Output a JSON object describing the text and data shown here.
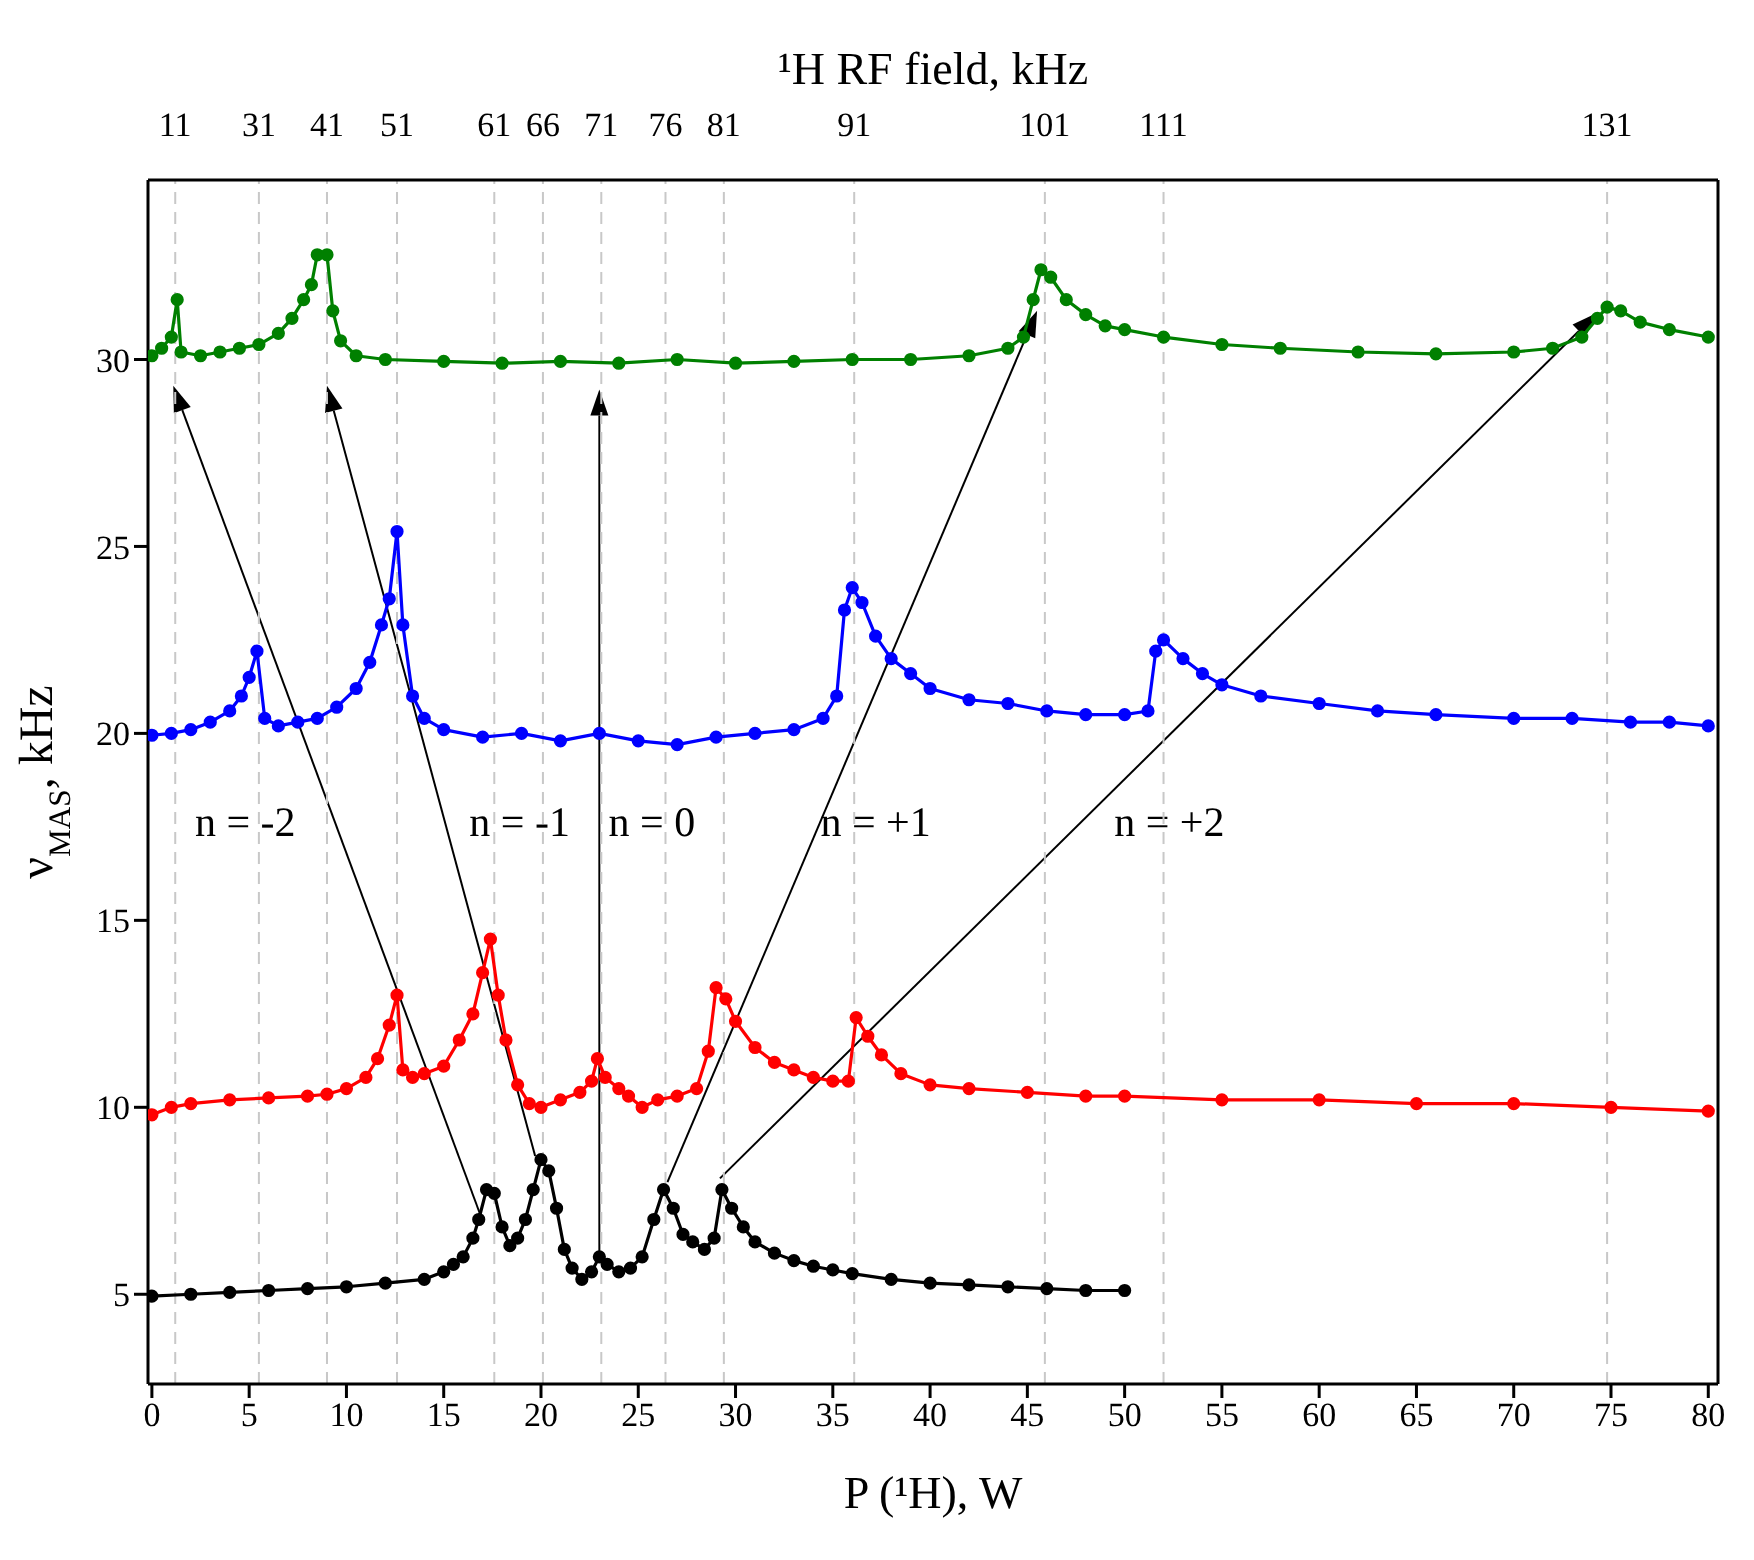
{
  "chart_data": {
    "type": "line",
    "xlabel": "P (¹H), W",
    "ylabel": "ν$_{MAS}$, kHz",
    "x2label": "¹H RF field, kHz",
    "xlim": [
      -0.2,
      80.5
    ],
    "xticks": [
      0,
      5,
      10,
      15,
      20,
      25,
      30,
      35,
      40,
      45,
      50,
      55,
      60,
      65,
      70,
      75,
      80
    ],
    "ylim": [
      2.6,
      34.8
    ],
    "yticks": [
      5,
      10,
      15,
      20,
      25,
      30
    ],
    "ref_lines": [
      {
        "axis": "x",
        "value": 1.2,
        "color": "#c8c8c8",
        "line_style": "dashed"
      },
      {
        "axis": "x",
        "value": 5.5,
        "color": "#c8c8c8",
        "line_style": "dashed"
      },
      {
        "axis": "x",
        "value": 9.0,
        "color": "#c8c8c8",
        "line_style": "dashed"
      },
      {
        "axis": "x",
        "value": 12.6,
        "color": "#c8c8c8",
        "line_style": "dashed"
      },
      {
        "axis": "x",
        "value": 17.6,
        "color": "#c8c8c8",
        "line_style": "dashed"
      },
      {
        "axis": "x",
        "value": 20.1,
        "color": "#c8c8c8",
        "line_style": "dashed"
      },
      {
        "axis": "x",
        "value": 23.1,
        "color": "#c8c8c8",
        "line_style": "dashed"
      },
      {
        "axis": "x",
        "value": 26.4,
        "color": "#c8c8c8",
        "line_style": "dashed"
      },
      {
        "axis": "x",
        "value": 29.4,
        "color": "#c8c8c8",
        "line_style": "dashed"
      },
      {
        "axis": "x",
        "value": 36.1,
        "color": "#c8c8c8",
        "line_style": "dashed"
      },
      {
        "axis": "x",
        "value": 45.9,
        "color": "#c8c8c8",
        "line_style": "dashed"
      },
      {
        "axis": "x",
        "value": 52.0,
        "color": "#c8c8c8",
        "line_style": "dashed"
      },
      {
        "axis": "x",
        "value": 74.8,
        "color": "#c8c8c8",
        "line_style": "dashed"
      }
    ],
    "marker": "circle",
    "line_style": "solid",
    "series": [
      {
        "color": "#000000",
        "x": [
          0,
          2,
          4,
          6,
          8,
          10,
          12,
          14,
          15,
          15.5,
          16,
          16.5,
          16.8,
          17.2,
          17.6,
          18,
          18.4,
          18.8,
          19.2,
          19.6,
          20.0,
          20.4,
          20.8,
          21.2,
          21.6,
          22.1,
          22.6,
          23.0,
          23.4,
          24.0,
          24.6,
          25.2,
          25.8,
          26.3,
          26.8,
          27.3,
          27.8,
          28.4,
          28.9,
          29.3,
          29.8,
          30.4,
          31,
          32,
          33,
          34,
          35,
          36,
          38,
          40,
          42,
          44,
          46,
          48,
          50
        ],
        "values": [
          4.95,
          5.0,
          5.05,
          5.1,
          5.15,
          5.2,
          5.3,
          5.4,
          5.6,
          5.8,
          6.0,
          6.5,
          7.0,
          7.8,
          7.7,
          6.8,
          6.3,
          6.5,
          7.0,
          7.8,
          8.6,
          8.3,
          7.3,
          6.2,
          5.7,
          5.4,
          5.6,
          6.0,
          5.8,
          5.6,
          5.7,
          6.0,
          7.0,
          7.8,
          7.3,
          6.6,
          6.4,
          6.2,
          6.5,
          7.8,
          7.3,
          6.8,
          6.4,
          6.1,
          5.9,
          5.75,
          5.65,
          5.55,
          5.4,
          5.3,
          5.25,
          5.2,
          5.15,
          5.1,
          5.1
        ]
      },
      {
        "color": "#ff0000",
        "x": [
          0,
          1,
          2,
          4,
          6,
          8,
          9,
          10,
          11,
          11.6,
          12.2,
          12.6,
          12.9,
          13.4,
          14,
          15,
          15.8,
          16.5,
          17,
          17.4,
          17.8,
          18.2,
          18.8,
          19.4,
          20,
          21,
          22,
          22.6,
          22.9,
          23.3,
          24,
          24.5,
          25.2,
          26,
          27,
          28,
          28.6,
          29.0,
          29.5,
          30,
          31,
          32,
          33,
          34,
          35,
          35.8,
          36.2,
          36.8,
          37.5,
          38.5,
          40,
          42,
          45,
          48,
          50,
          55,
          60,
          65,
          70,
          75,
          80
        ],
        "values": [
          9.8,
          10.0,
          10.1,
          10.2,
          10.25,
          10.3,
          10.35,
          10.5,
          10.8,
          11.3,
          12.2,
          13.0,
          11.0,
          10.8,
          10.9,
          11.1,
          11.8,
          12.5,
          13.6,
          14.5,
          13.0,
          11.8,
          10.6,
          10.1,
          10.0,
          10.2,
          10.4,
          10.7,
          11.3,
          10.8,
          10.5,
          10.3,
          10.0,
          10.2,
          10.3,
          10.5,
          11.5,
          13.2,
          12.9,
          12.3,
          11.6,
          11.2,
          11.0,
          10.8,
          10.7,
          10.7,
          12.4,
          11.9,
          11.4,
          10.9,
          10.6,
          10.5,
          10.4,
          10.3,
          10.3,
          10.2,
          10.2,
          10.1,
          10.1,
          10.0,
          9.9
        ]
      },
      {
        "color": "#0000ff",
        "x": [
          0,
          1,
          2,
          3,
          4,
          4.6,
          5.0,
          5.4,
          5.8,
          6.5,
          7.5,
          8.5,
          9.5,
          10.5,
          11.2,
          11.8,
          12.2,
          12.6,
          12.9,
          13.4,
          14,
          15,
          17,
          19,
          21,
          23,
          25,
          27,
          29,
          31,
          33,
          34.5,
          35.2,
          35.6,
          36,
          36.5,
          37.2,
          38,
          39,
          40,
          42,
          44,
          46,
          48,
          50,
          51.2,
          51.6,
          52,
          53,
          54,
          55,
          57,
          60,
          63,
          66,
          70,
          73,
          76,
          78,
          80
        ],
        "values": [
          19.95,
          20.0,
          20.1,
          20.3,
          20.6,
          21.0,
          21.5,
          22.2,
          20.4,
          20.2,
          20.3,
          20.4,
          20.7,
          21.2,
          21.9,
          22.9,
          23.6,
          25.4,
          22.9,
          21.0,
          20.4,
          20.1,
          19.9,
          20.0,
          19.8,
          20.0,
          19.8,
          19.7,
          19.9,
          20.0,
          20.1,
          20.4,
          21.0,
          23.3,
          23.9,
          23.5,
          22.6,
          22.0,
          21.6,
          21.2,
          20.9,
          20.8,
          20.6,
          20.5,
          20.5,
          20.6,
          22.2,
          22.5,
          22.0,
          21.6,
          21.3,
          21.0,
          20.8,
          20.6,
          20.5,
          20.4,
          20.4,
          20.3,
          20.3,
          20.2
        ]
      },
      {
        "color": "#008000",
        "x": [
          0,
          0.5,
          1.0,
          1.3,
          1.5,
          2.5,
          3.5,
          4.5,
          5.5,
          6.5,
          7.2,
          7.8,
          8.2,
          8.5,
          9.0,
          9.3,
          9.7,
          10.5,
          12,
          15,
          18,
          21,
          24,
          27,
          30,
          33,
          36,
          39,
          42,
          44,
          44.8,
          45.3,
          45.7,
          46.2,
          47,
          48,
          49,
          50,
          52,
          55,
          58,
          62,
          66,
          70,
          72,
          73.5,
          74.3,
          74.8,
          75.5,
          76.5,
          78,
          80
        ],
        "values": [
          30.1,
          30.3,
          30.6,
          31.6,
          30.2,
          30.1,
          30.2,
          30.3,
          30.4,
          30.7,
          31.1,
          31.6,
          32.0,
          32.8,
          32.8,
          31.3,
          30.5,
          30.1,
          30.0,
          29.95,
          29.9,
          29.95,
          29.9,
          30.0,
          29.9,
          29.95,
          30.0,
          30.0,
          30.1,
          30.3,
          30.6,
          31.6,
          32.4,
          32.2,
          31.6,
          31.2,
          30.9,
          30.8,
          30.6,
          30.4,
          30.3,
          30.2,
          30.15,
          30.2,
          30.3,
          30.6,
          31.1,
          31.4,
          31.3,
          31.0,
          30.8,
          30.6
        ]
      }
    ],
    "annotations": [
      "n = -2",
      "n = -1",
      "n = 0",
      "n = +1",
      "n = +2",
      "11",
      "31",
      "41",
      "51",
      "61",
      "66",
      "71",
      "76",
      "81",
      "91",
      "101",
      "111",
      "131"
    ]
  }
}
